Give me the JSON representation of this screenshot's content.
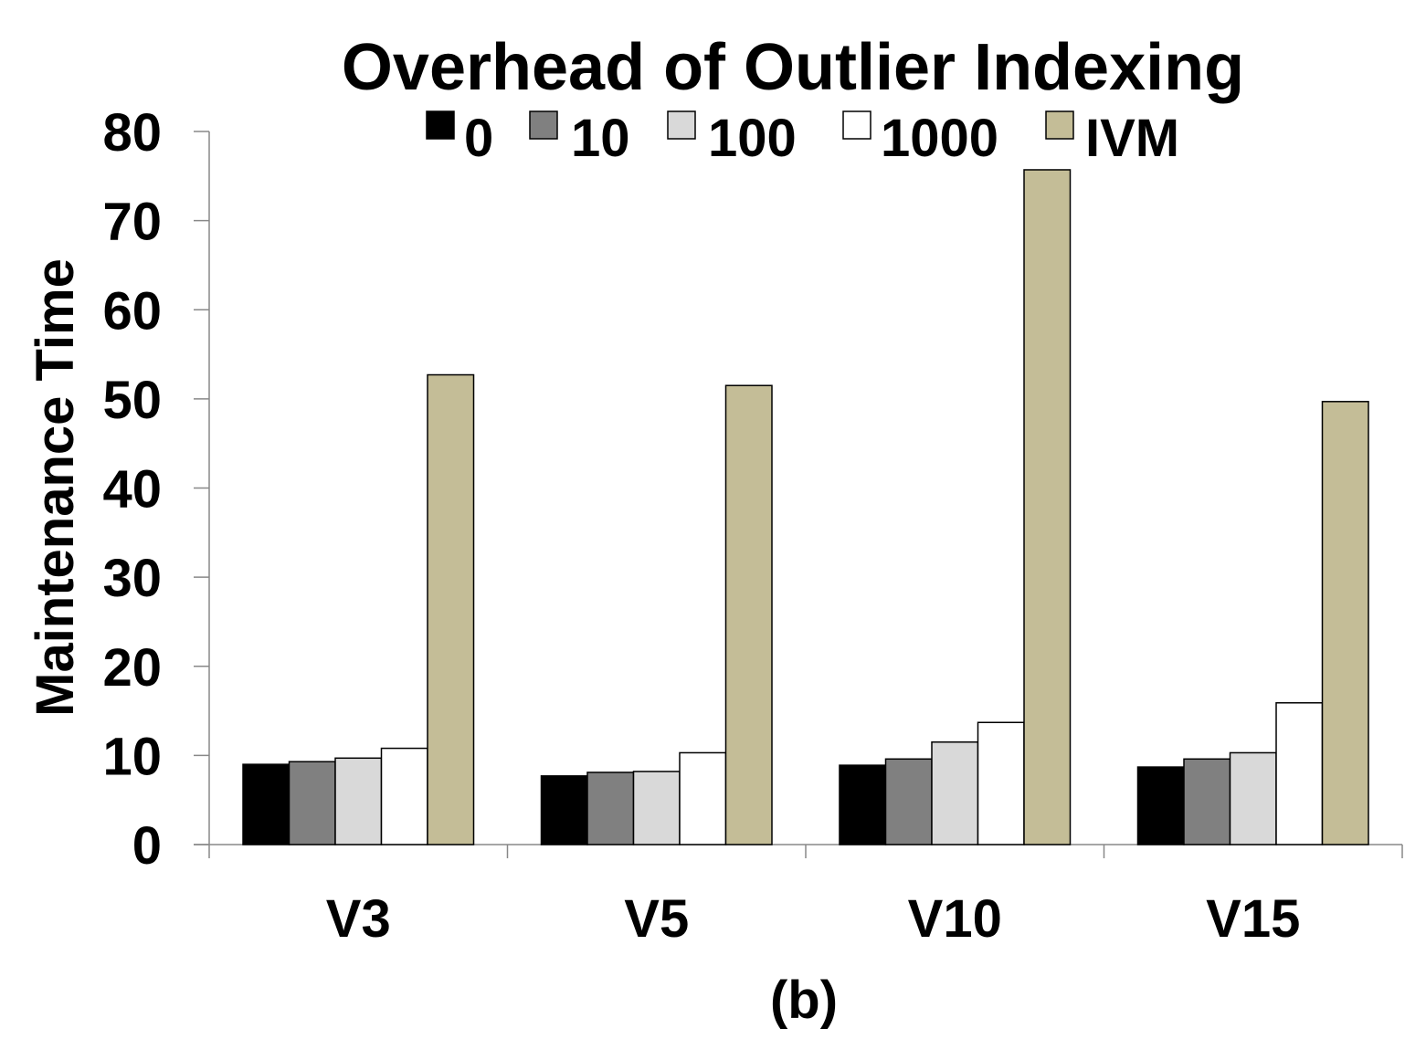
{
  "chart_data": {
    "type": "bar",
    "title": "Overhead of Outlier Indexing",
    "xlabel": "(b)",
    "ylabel": "Maintenance Time",
    "categories": [
      "V3",
      "V5",
      "V10",
      "V15"
    ],
    "ylim": [
      0,
      80
    ],
    "yticks": [
      "0",
      "10",
      "20",
      "30",
      "40",
      "50",
      "60",
      "70",
      "80"
    ],
    "legend_position": "top",
    "grid": false,
    "series": [
      {
        "name": "0",
        "color": "#000000",
        "values": [
          9.0,
          7.7,
          8.9,
          8.7
        ]
      },
      {
        "name": "10",
        "color": "#808080",
        "values": [
          9.3,
          8.1,
          9.6,
          9.6
        ]
      },
      {
        "name": "100",
        "color": "#d9d9d9",
        "values": [
          9.7,
          8.2,
          11.5,
          10.3
        ]
      },
      {
        "name": "1000",
        "color": "#ffffff",
        "values": [
          10.8,
          10.3,
          13.7,
          15.9
        ]
      },
      {
        "name": "IVM",
        "color": "#c4bd97",
        "values": [
          52.7,
          51.5,
          75.7,
          49.7
        ]
      }
    ]
  }
}
